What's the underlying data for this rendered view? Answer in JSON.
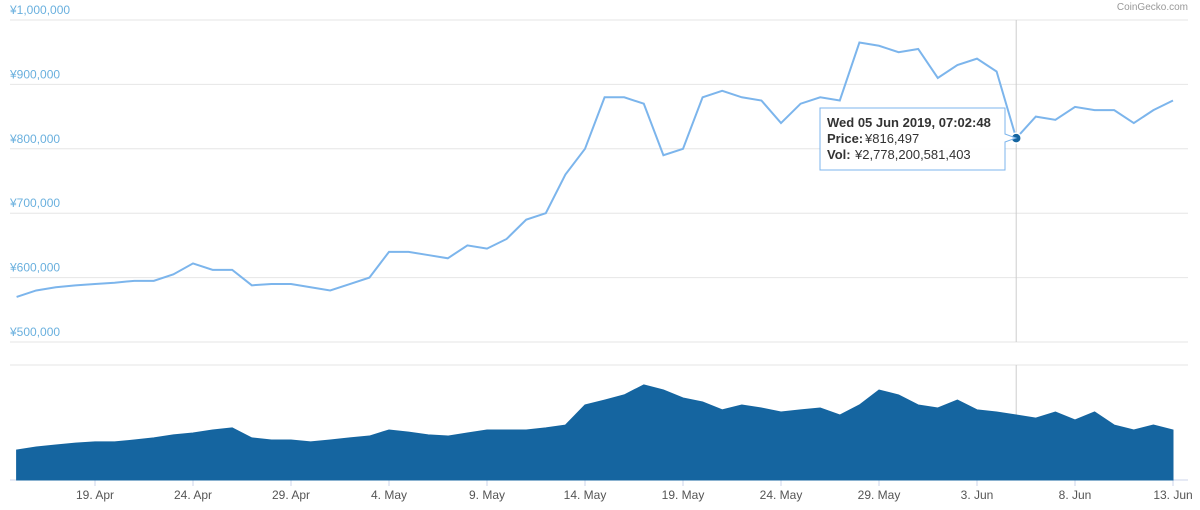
{
  "chart_data": {
    "type": "line",
    "credit": "CoinGecko.com",
    "categories": [
      null,
      null,
      null,
      null,
      "19. Apr",
      null,
      null,
      null,
      null,
      "24. Apr",
      null,
      null,
      null,
      null,
      "29. Apr",
      null,
      null,
      null,
      null,
      "4. May",
      null,
      null,
      null,
      null,
      "9. May",
      null,
      null,
      null,
      null,
      "14. May",
      null,
      null,
      null,
      null,
      "19. May",
      null,
      null,
      null,
      null,
      "24. May",
      null,
      null,
      null,
      null,
      "29. May",
      null,
      null,
      null,
      null,
      "3. Jun",
      null,
      null,
      null,
      null,
      "8. Jun",
      null,
      null,
      null,
      null,
      "13. Jun"
    ],
    "series": [
      {
        "name": "Price",
        "color": "#7cb5ec",
        "values": [
          570000,
          580000,
          585000,
          588000,
          590000,
          592000,
          595000,
          595000,
          605000,
          622000,
          612000,
          612000,
          588000,
          590000,
          590000,
          585000,
          580000,
          590000,
          600000,
          640000,
          640000,
          635000,
          630000,
          650000,
          645000,
          660000,
          690000,
          700000,
          760000,
          800000,
          880000,
          880000,
          870000,
          790000,
          800000,
          880000,
          890000,
          880000,
          875000,
          840000,
          870000,
          880000,
          875000,
          965000,
          960000,
          950000,
          955000,
          910000,
          930000,
          940000,
          920000,
          816497,
          850000,
          845000,
          865000,
          860000,
          860000,
          840000,
          860000,
          875000
        ]
      },
      {
        "name": "Vol",
        "color": "#1565a0",
        "axis": "y2",
        "values": [
          1280000000000.0,
          1410000000000.0,
          1500000000000.0,
          1580000000000.0,
          1630000000000.0,
          1630000000000.0,
          1710000000000.0,
          1800000000000.0,
          1930000000000.0,
          2010000000000.0,
          2140000000000.0,
          2230000000000.0,
          1800000000000.0,
          1710000000000.0,
          1710000000000.0,
          1630000000000.0,
          1710000000000.0,
          1800000000000.0,
          1880000000000.0,
          2140000000000.0,
          2050000000000.0,
          1930000000000.0,
          1880000000000.0,
          2010000000000.0,
          2140000000000.0,
          2140000000000.0,
          2140000000000.0,
          2230000000000.0,
          2350000000000.0,
          3210000000000.0,
          3420000000000.0,
          3640000000000.0,
          4070000000000.0,
          3850000000000.0,
          3510000000000.0,
          3340000000000.0,
          3000000000000.0,
          3210000000000.0,
          3080000000000.0,
          2910000000000.0,
          3000000000000.0,
          3080000000000.0,
          2780000000000.0,
          3210000000000.0,
          3850000000000.0,
          3640000000000.0,
          3210000000000.0,
          3080000000000.0,
          3420000000000.0,
          3000000000000.0,
          2910000000000.0,
          2780000000000.0,
          2650000000000.0,
          2910000000000.0,
          2570000000000.0,
          2910000000000.0,
          2350000000000.0,
          2140000000000.0,
          2350000000000.0,
          2140000000000.0
        ]
      }
    ],
    "ylim": [
      500000,
      1000000
    ],
    "yticks": [
      {
        "value": 500000,
        "label": "¥500,000"
      },
      {
        "value": 600000,
        "label": "¥600,000"
      },
      {
        "value": 700000,
        "label": "¥700,000"
      },
      {
        "value": 800000,
        "label": "¥800,000"
      },
      {
        "value": 900000,
        "label": "¥900,000"
      },
      {
        "value": 1000000,
        "label": "¥1,000,000"
      }
    ],
    "y2lim": [
      0,
      4920000000000.0
    ],
    "grid": true,
    "tooltip": {
      "index": 51,
      "title": "Wed 05 Jun 2019, 07:02:48",
      "price_label": "Price:",
      "price_value": "¥816,497",
      "vol_label": "Vol:",
      "vol_value": "¥2,778,200,581,403"
    }
  }
}
